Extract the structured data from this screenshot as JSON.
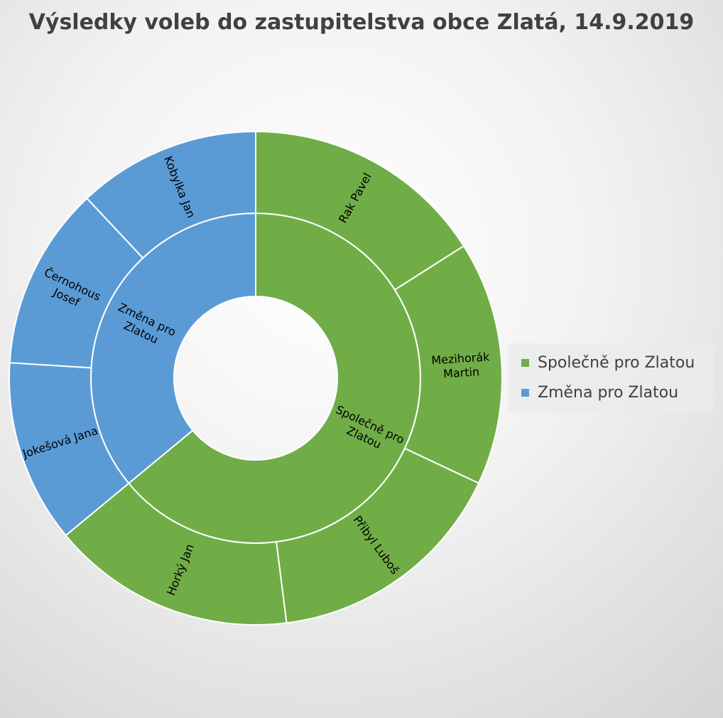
{
  "chart_data": {
    "type": "sunburst",
    "title": "Výsledky voleb do zastupitelstva obce Zlatá, 14.9.2019",
    "legend_position": "right",
    "series": [
      {
        "name": "Společně pro Zlatou",
        "color": "#70ad47",
        "label_lines": [
          "Společně pro",
          "Zlatou"
        ],
        "children": [
          {
            "name": "Rak Pavel",
            "label_lines": [
              "Rak Pavel"
            ],
            "value": 1
          },
          {
            "name": "Mezihorák Martin",
            "label_lines": [
              "Mezihorák",
              "Martin"
            ],
            "value": 1
          },
          {
            "name": "Přibyl Luboš",
            "label_lines": [
              "Přibyl Luboš"
            ],
            "value": 1
          },
          {
            "name": "Horký Jan",
            "label_lines": [
              "Horký Jan"
            ],
            "value": 1
          }
        ]
      },
      {
        "name": "Změna pro Zlatou",
        "color": "#5b9bd5",
        "label_lines": [
          "Změna pro",
          "Zlatou"
        ],
        "children": [
          {
            "name": "Jokešová Jana",
            "label_lines": [
              "Jokešová Jana"
            ],
            "value": 0.75
          },
          {
            "name": "Černohous Josef",
            "label_lines": [
              "Černohous",
              "Josef"
            ],
            "value": 0.75
          },
          {
            "name": "Kobylka Jan",
            "label_lines": [
              "Kobylka Jan"
            ],
            "value": 0.75
          }
        ]
      }
    ]
  }
}
